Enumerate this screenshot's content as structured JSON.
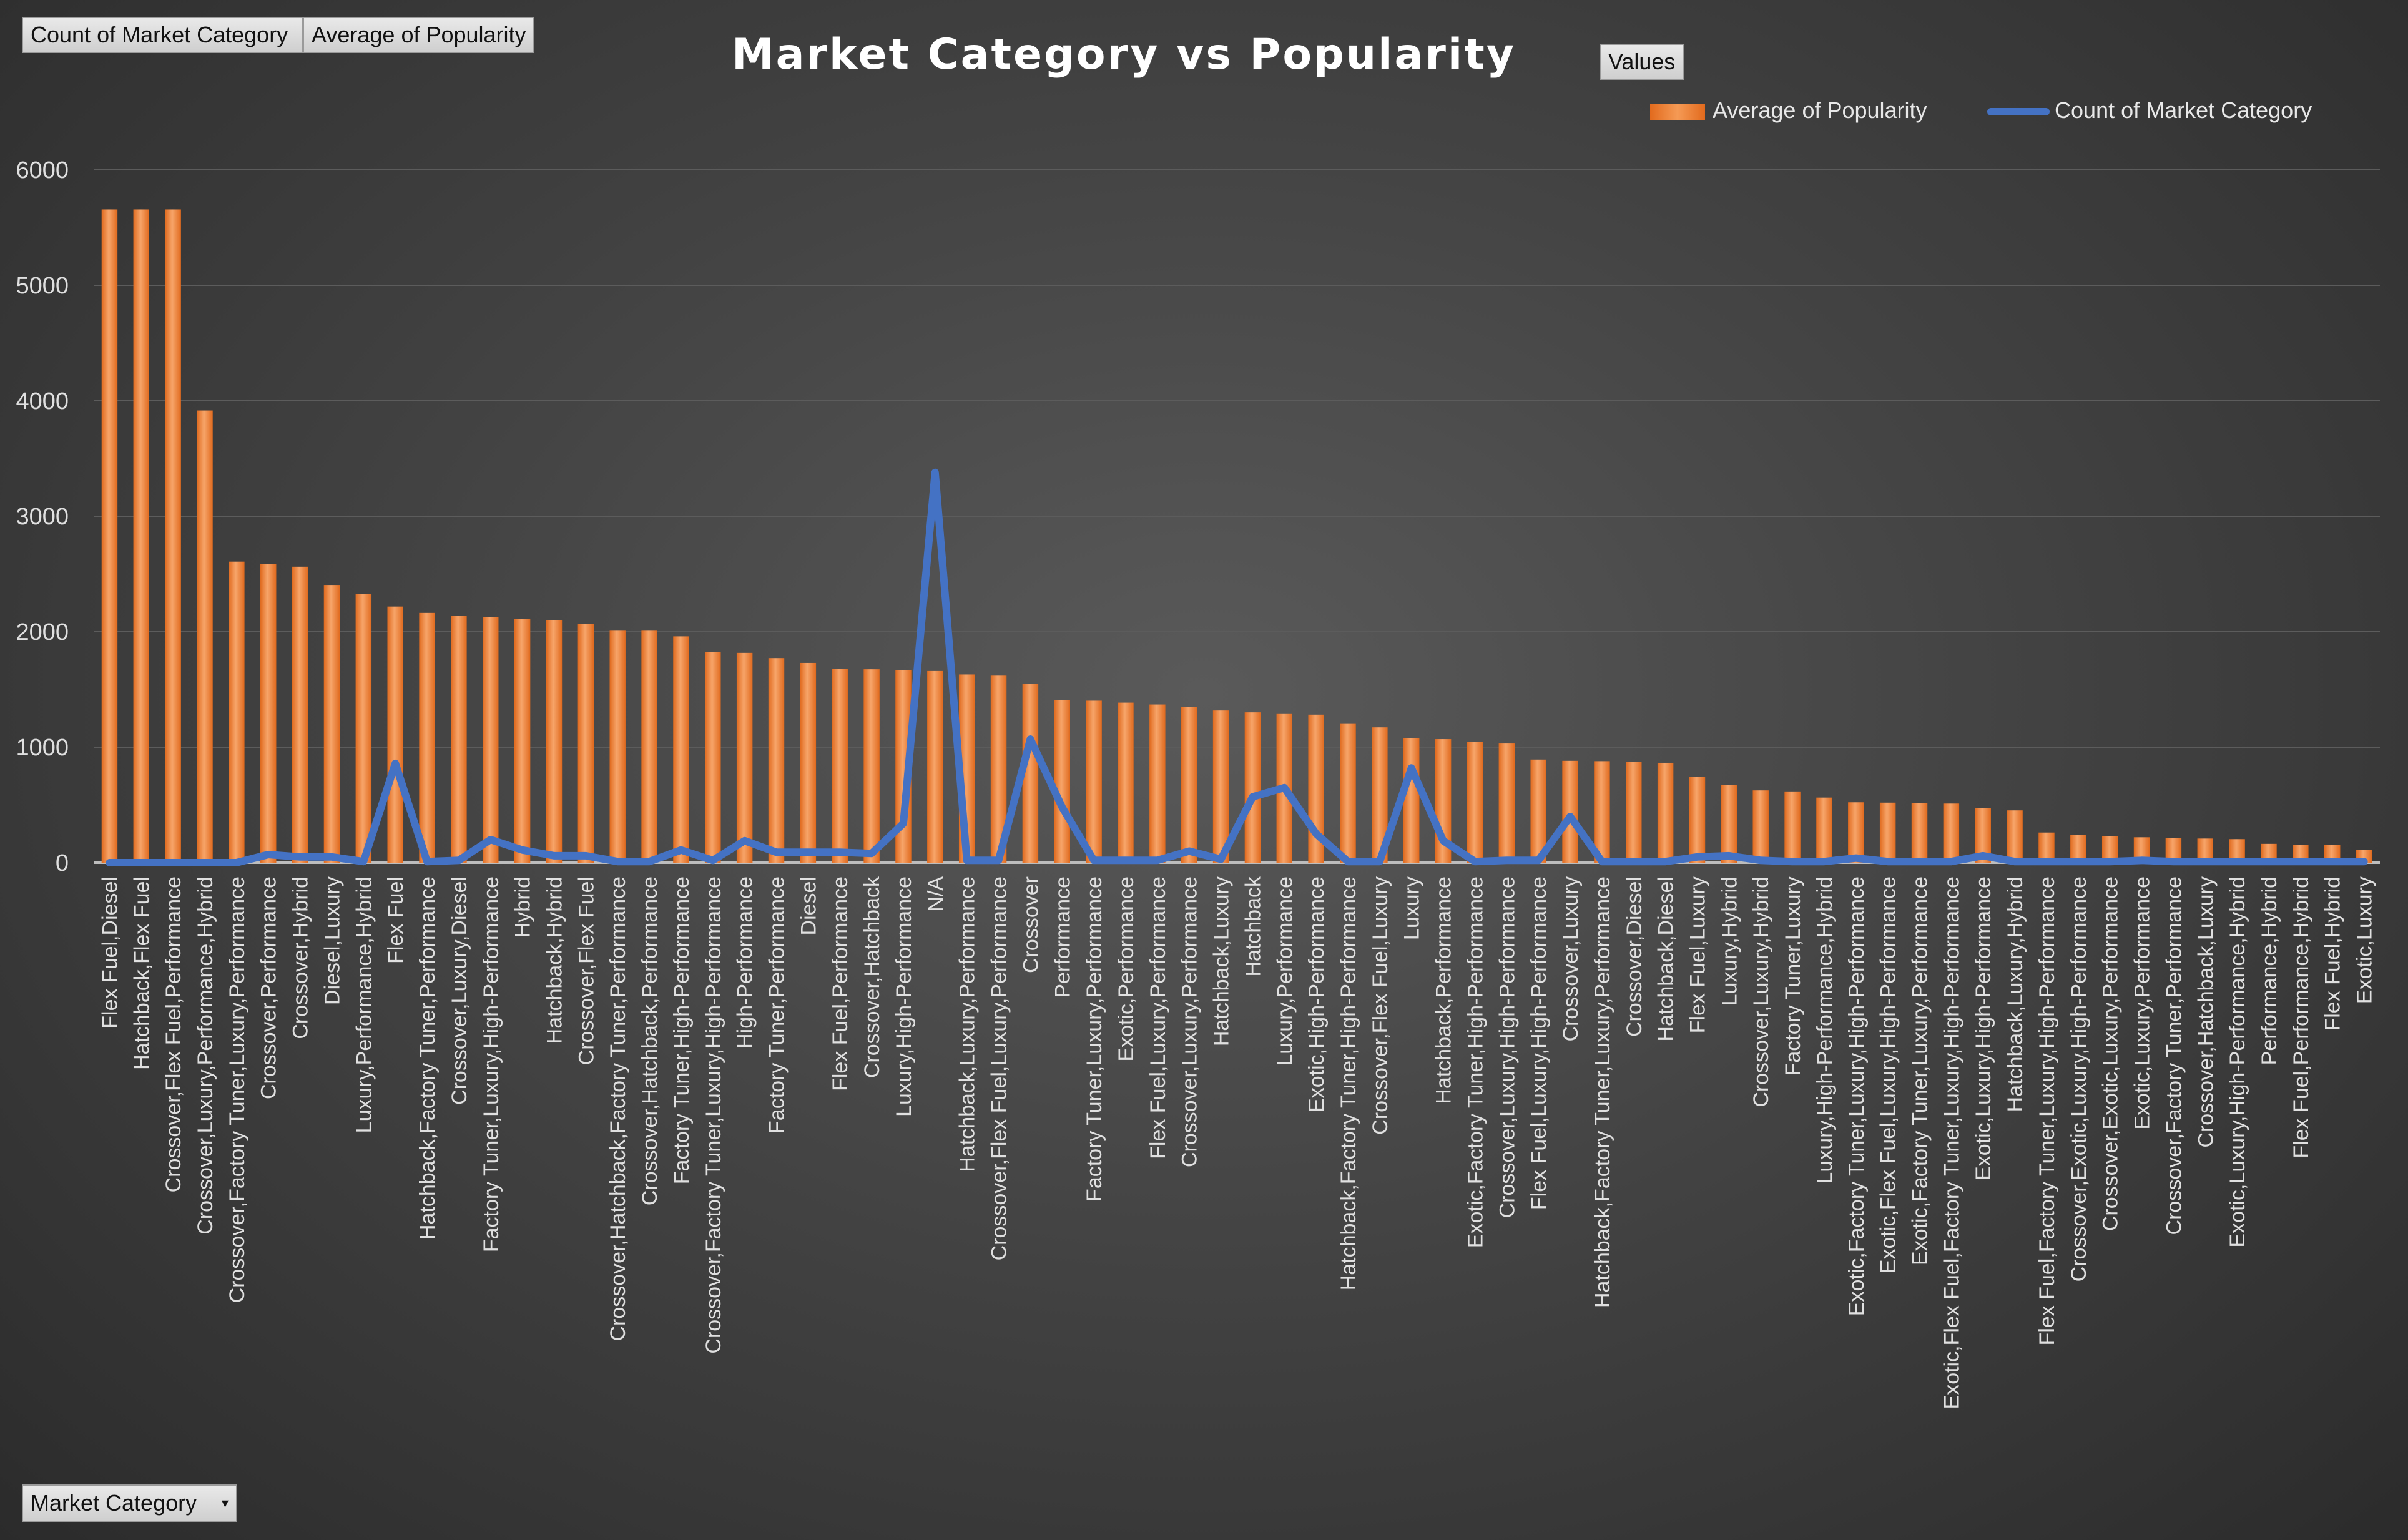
{
  "pivot": {
    "count_label": "Count of Market Category",
    "average_label": "Average of Popularity",
    "values_label": "Values",
    "category_label": "Market Category",
    "dropdown_glyph": "▾"
  },
  "colors": {
    "bar": "#ed7d31",
    "bar_highlight": "#f7a56a",
    "line": "#4472c4",
    "gridline": "#5c5c5c",
    "text": "#e0e0e0"
  },
  "chart_data": {
    "type": "bar",
    "title": "Market Category vs Popularity",
    "xlabel": "",
    "ylabel": "",
    "ylim": [
      0,
      6000
    ],
    "yticks": [
      0,
      1000,
      2000,
      3000,
      4000,
      5000,
      6000
    ],
    "grid": true,
    "legend_position": "top-right",
    "categories": [
      "Flex Fuel,Diesel",
      "Hatchback,Flex Fuel",
      "Crossover,Flex Fuel,Performance",
      "Crossover,Luxury,Performance,Hybrid",
      "Crossover,Factory Tuner,Luxury,Performance",
      "Crossover,Performance",
      "Crossover,Hybrid",
      "Diesel,Luxury",
      "Luxury,Performance,Hybrid",
      "Flex Fuel",
      "Hatchback,Factory Tuner,Performance",
      "Crossover,Luxury,Diesel",
      "Factory Tuner,Luxury,High-Performance",
      "Hybrid",
      "Hatchback,Hybrid",
      "Crossover,Flex Fuel",
      "Crossover,Hatchback,Factory Tuner,Performance",
      "Crossover,Hatchback,Performance",
      "Factory Tuner,High-Performance",
      "Crossover,Factory Tuner,Luxury,High-Performance",
      "High-Performance",
      "Factory Tuner,Performance",
      "Diesel",
      "Flex Fuel,Performance",
      "Crossover,Hatchback",
      "Luxury,High-Performance",
      "N/A",
      "Hatchback,Luxury,Performance",
      "Crossover,Flex Fuel,Luxury,Performance",
      "Crossover",
      "Performance",
      "Factory Tuner,Luxury,Performance",
      "Exotic,Performance",
      "Flex Fuel,Luxury,Performance",
      "Crossover,Luxury,Performance",
      "Hatchback,Luxury",
      "Hatchback",
      "Luxury,Performance",
      "Exotic,High-Performance",
      "Hatchback,Factory Tuner,High-Performance",
      "Crossover,Flex Fuel,Luxury",
      "Luxury",
      "Hatchback,Performance",
      "Exotic,Factory Tuner,High-Performance",
      "Crossover,Luxury,High-Performance",
      "Flex Fuel,Luxury,High-Performance",
      "Crossover,Luxury",
      "Hatchback,Factory Tuner,Luxury,Performance",
      "Crossover,Diesel",
      "Hatchback,Diesel",
      "Flex Fuel,Luxury",
      "Luxury,Hybrid",
      "Crossover,Luxury,Hybrid",
      "Factory Tuner,Luxury",
      "Luxury,High-Performance,Hybrid",
      "Exotic,Factory Tuner,Luxury,High-Performance",
      "Exotic,Flex Fuel,Luxury,High-Performance",
      "Exotic,Factory Tuner,Luxury,Performance",
      "Exotic,Flex Fuel,Factory Tuner,Luxury,High-Performance",
      "Exotic,Luxury,High-Performance",
      "Hatchback,Luxury,Hybrid",
      "Flex Fuel,Factory Tuner,Luxury,High-Performance",
      "Crossover,Exotic,Luxury,High-Performance",
      "Crossover,Exotic,Luxury,Performance",
      "Exotic,Luxury,Performance",
      "Crossover,Factory Tuner,Performance",
      "Crossover,Hatchback,Luxury",
      "Exotic,Luxury,High-Performance,Hybrid",
      "Performance,Hybrid",
      "Flex Fuel,Performance,Hybrid",
      "Flex Fuel,Hybrid",
      "Exotic,Luxury"
    ],
    "series": [
      {
        "name": "Average of Popularity",
        "type": "bar",
        "values": [
          5657,
          5657,
          5657,
          3916,
          2607,
          2585,
          2563,
          2405,
          2327,
          2218,
          2163,
          2140,
          2126,
          2112,
          2098,
          2070,
          2009,
          2009,
          1960,
          1823,
          1817,
          1772,
          1730,
          1680,
          1675,
          1670,
          1660,
          1630,
          1620,
          1550,
          1410,
          1403,
          1386,
          1370,
          1347,
          1318,
          1302,
          1293,
          1282,
          1202,
          1172,
          1080,
          1070,
          1046,
          1032,
          893,
          882,
          879,
          872,
          865,
          745,
          673,
          626,
          617,
          564,
          523,
          520,
          518,
          512,
          472,
          453,
          261,
          238,
          230,
          220,
          213,
          209,
          204,
          163,
          155,
          152,
          113
        ]
      },
      {
        "name": "Count of Market Category",
        "type": "line",
        "values": [
          0,
          0,
          0,
          0,
          0,
          70,
          50,
          50,
          10,
          860,
          10,
          20,
          200,
          110,
          60,
          60,
          10,
          10,
          110,
          20,
          190,
          90,
          90,
          90,
          80,
          340,
          3380,
          20,
          20,
          1070,
          480,
          20,
          20,
          20,
          100,
          30,
          570,
          650,
          250,
          10,
          10,
          820,
          190,
          10,
          20,
          20,
          400,
          10,
          10,
          10,
          50,
          60,
          20,
          10,
          10,
          40,
          10,
          10,
          10,
          60,
          10,
          10,
          10,
          10,
          20,
          10,
          10,
          10,
          10,
          10,
          10,
          10
        ]
      }
    ]
  }
}
